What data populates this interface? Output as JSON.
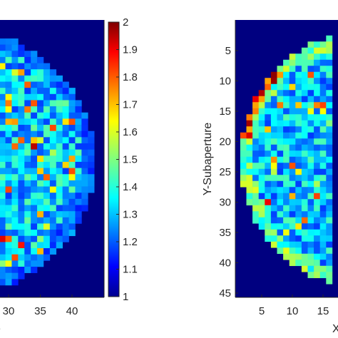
{
  "chart_data": [
    {
      "type": "heatmap",
      "panel": "left",
      "colormap": "jet",
      "color_range": [
        1,
        2
      ],
      "colorbar_ticks": [
        "1",
        "1.1",
        "1.2",
        "1.3",
        "1.4",
        "1.5",
        "1.6",
        "1.7",
        "1.8",
        "1.9",
        "2"
      ],
      "x_ticks": [
        "30",
        "35",
        "40"
      ],
      "x_tick_values": [
        30,
        35,
        40
      ],
      "xlabel_visible_fragment": "e",
      "grid_size": [
        45,
        45
      ],
      "description_of_values": "circular pupil of subapertures, background value 1.0 outside pupil, values mostly between 1.1 and 1.5 inside with sparse highs up to ~1.9"
    },
    {
      "type": "heatmap",
      "panel": "right",
      "colormap": "jet",
      "y_ticks": [
        "5",
        "10",
        "15",
        "20",
        "25",
        "30",
        "35",
        "40",
        "45"
      ],
      "y_tick_values": [
        5,
        10,
        15,
        20,
        25,
        30,
        35,
        40,
        45
      ],
      "x_ticks": [
        "5",
        "10",
        "15"
      ],
      "x_tick_values": [
        5,
        10,
        15
      ],
      "ylabel": "Y-Subaperture",
      "xlabel_visible_fragment": "X",
      "grid_size": [
        45,
        45
      ]
    }
  ]
}
